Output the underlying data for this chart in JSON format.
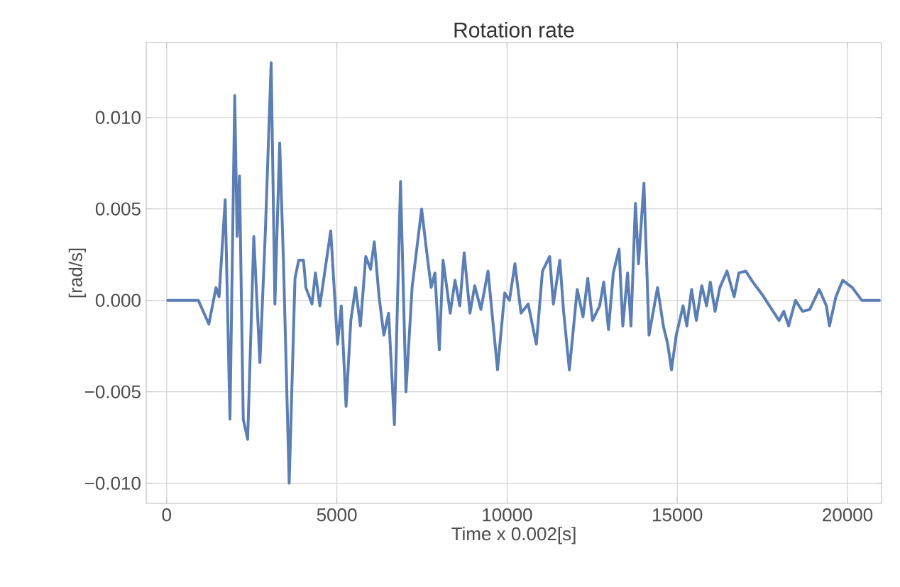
{
  "chart_data": {
    "type": "line",
    "title": "Rotation rate",
    "xlabel": "Time x 0.002[s]",
    "ylabel": "[rad/s]",
    "xlim": [
      -600,
      21000
    ],
    "ylim": [
      -0.0111,
      0.0141
    ],
    "xticks": [
      0,
      5000,
      10000,
      15000,
      20000
    ],
    "yticks": [
      {
        "value": -0.01,
        "label": "−0.010"
      },
      {
        "value": -0.005,
        "label": "−0.005"
      },
      {
        "value": 0,
        "label": "0.000"
      },
      {
        "value": 0.005,
        "label": "0.005"
      },
      {
        "value": 0.01,
        "label": "0.010"
      }
    ],
    "grid": true,
    "marker": "none",
    "line_style": "solid",
    "series": [
      {
        "color": "#5b7fb5",
        "x": [
          0,
          930,
          1240,
          1450,
          1540,
          1720,
          1860,
          2000,
          2070,
          2140,
          2250,
          2380,
          2560,
          2740,
          2900,
          3070,
          3180,
          3320,
          3430,
          3600,
          3770,
          3880,
          4020,
          4090,
          4270,
          4370,
          4500,
          4640,
          4820,
          5020,
          5130,
          5270,
          5410,
          5550,
          5690,
          5850,
          5990,
          6100,
          6240,
          6380,
          6520,
          6690,
          6870,
          7030,
          7210,
          7490,
          7630,
          7770,
          7880,
          8010,
          8120,
          8330,
          8470,
          8610,
          8740,
          8910,
          9050,
          9230,
          9440,
          9720,
          9930,
          10070,
          10230,
          10410,
          10620,
          10860,
          11040,
          11250,
          11360,
          11550,
          11660,
          11830,
          12060,
          12230,
          12370,
          12510,
          12720,
          12840,
          12980,
          13120,
          13290,
          13400,
          13540,
          13640,
          13770,
          13860,
          14020,
          14170,
          14420,
          14590,
          14720,
          14830,
          14970,
          15170,
          15280,
          15420,
          15560,
          15720,
          15860,
          15970,
          16110,
          16250,
          16460,
          16670,
          16810,
          17010,
          17220,
          17500,
          17780,
          17990,
          18130,
          18270,
          18470,
          18680,
          18890,
          19170,
          19380,
          19470,
          19660,
          19860,
          20140,
          20420,
          20970
        ],
        "values": [
          0.0,
          0.0,
          -0.0013,
          0.0007,
          0.0002,
          0.0055,
          -0.0065,
          0.0112,
          0.0035,
          0.0068,
          -0.0065,
          -0.0076,
          0.0035,
          -0.0034,
          0.0038,
          0.013,
          -0.0002,
          0.0086,
          0.0022,
          -0.01,
          0.0012,
          0.0022,
          0.0022,
          0.0007,
          -0.0002,
          0.0015,
          -0.0003,
          0.0015,
          0.0038,
          -0.0024,
          -0.0003,
          -0.0058,
          -0.0011,
          0.0007,
          -0.0014,
          0.0024,
          0.0017,
          0.0032,
          0.0002,
          -0.0019,
          -0.0007,
          -0.0068,
          0.0065,
          -0.005,
          0.0007,
          0.005,
          0.0028,
          0.0007,
          0.0015,
          -0.0027,
          0.0022,
          -0.0007,
          0.0011,
          -0.0003,
          0.0026,
          -0.0007,
          0.0008,
          -0.0005,
          0.0016,
          -0.0038,
          0.0004,
          0.0,
          0.002,
          -0.0007,
          -0.0002,
          -0.0024,
          0.0016,
          0.0024,
          -0.0002,
          0.0022,
          -0.0006,
          -0.0038,
          0.0006,
          -0.0009,
          0.0012,
          -0.0011,
          -0.0003,
          0.001,
          -0.0016,
          0.0015,
          0.0028,
          -0.0014,
          0.0015,
          -0.0014,
          0.0053,
          0.002,
          0.0064,
          -0.0019,
          0.0007,
          -0.0014,
          -0.0024,
          -0.0038,
          -0.0019,
          -0.0003,
          -0.0014,
          0.0006,
          -0.0011,
          0.0008,
          -0.0003,
          0.001,
          -0.0006,
          0.0007,
          0.0016,
          0.0002,
          0.0015,
          0.0016,
          0.001,
          0.0003,
          -0.0005,
          -0.0011,
          -0.0006,
          -0.0014,
          0.0,
          -0.0006,
          -0.0005,
          0.0006,
          -0.0003,
          -0.0014,
          0.0002,
          0.0011,
          0.0007,
          0.0,
          0.0
        ]
      }
    ]
  }
}
